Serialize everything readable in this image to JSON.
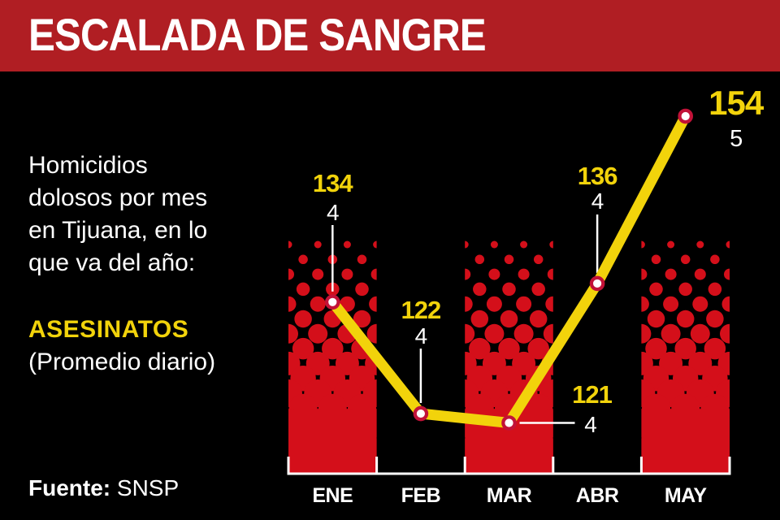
{
  "header": {
    "title": "ESCALADA DE SANGRE"
  },
  "intro": {
    "lines": [
      "Homicidios",
      "dolosos por mes",
      "en Tijuana, en lo",
      "que va del año:"
    ],
    "highlight": "ASESINATOS",
    "subtitle": "(Promedio diario)"
  },
  "source": {
    "label": "Fuente:",
    "value": "SNSP"
  },
  "colors": {
    "header_red": "#b01e23",
    "bar_red": "#d40f1a",
    "yellow": "#f2d30b",
    "marker_ring": "#c21238",
    "marker_fill": "#ffffff",
    "axis_white": "#ffffff",
    "background": "#000000"
  },
  "chart_data": {
    "type": "line",
    "title": "Homicidios dolosos por mes en Tijuana (ASESINATOS)",
    "categories": [
      "ENE",
      "FEB",
      "MAR",
      "ABR",
      "MAY"
    ],
    "series": [
      {
        "name": "Homicidios dolosos por mes",
        "values": [
          134,
          122,
          121,
          136,
          154
        ]
      },
      {
        "name": "Promedio diario",
        "values": [
          4,
          4,
          4,
          4,
          5
        ]
      }
    ],
    "highlight_bars": [
      "ENE",
      "MAR",
      "MAY"
    ],
    "annotation_placements": [
      "above",
      "above",
      "right",
      "above",
      "right-large"
    ],
    "ylim": [
      110,
      160
    ],
    "grid": false,
    "legend": "none",
    "xlabel": "",
    "ylabel": ""
  }
}
